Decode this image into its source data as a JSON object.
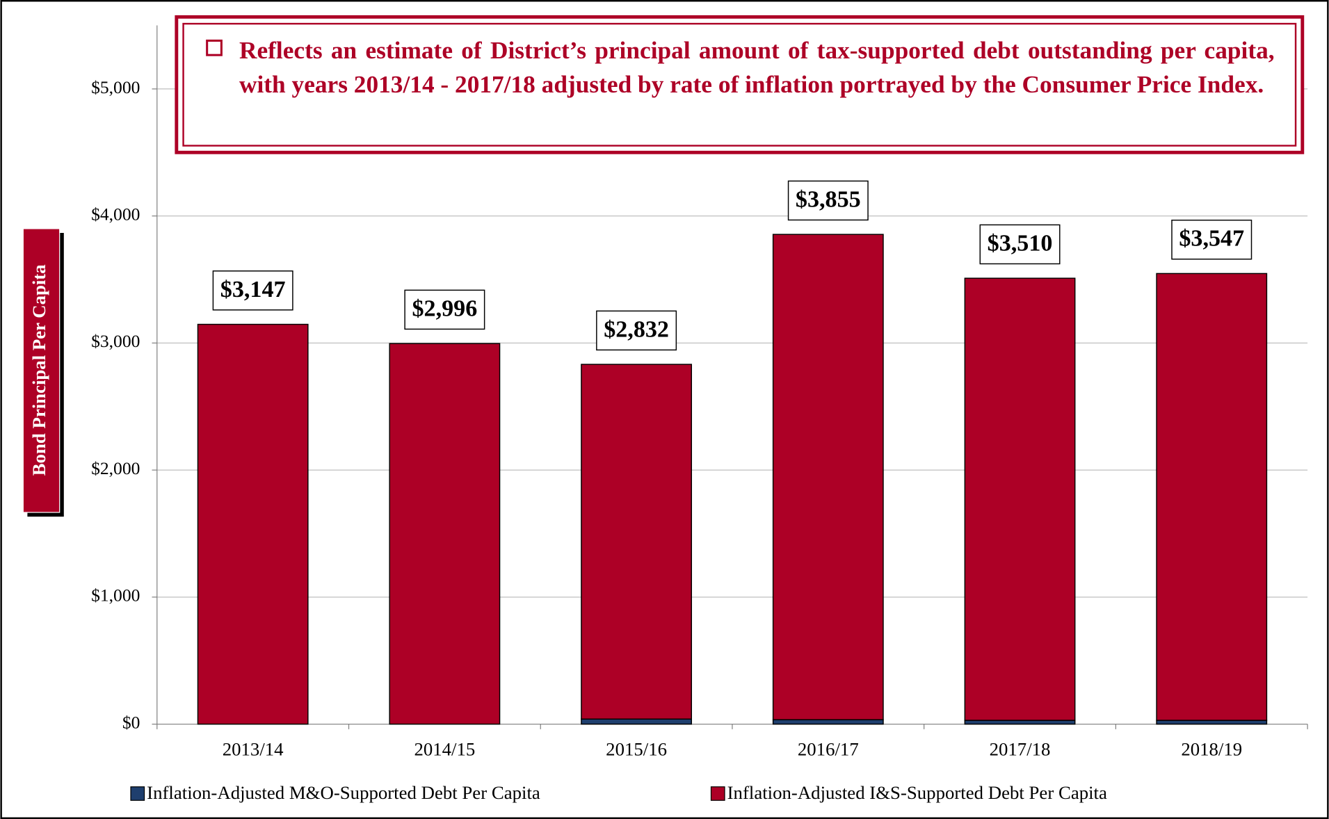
{
  "chart_data": {
    "type": "bar",
    "stacked": true,
    "annotation": "Reflects an estimate of District’s principal amount of tax-supported debt outstanding per capita, with years 2013/14 - 2017/18 adjusted by rate of inflation portrayed by the Consumer Price Index.",
    "y_label": "Bond Principal Per Capita",
    "categories": [
      "2013/14",
      "2014/15",
      "2015/16",
      "2016/17",
      "2017/18",
      "2018/19"
    ],
    "series": [
      {
        "name": "Inflation-Adjusted M&O-Supported Debt Per Capita",
        "color": "#1f3f6e",
        "values": [
          0,
          0,
          40,
          35,
          30,
          30
        ]
      },
      {
        "name": "Inflation-Adjusted I&S-Supported Debt Per Capita",
        "color": "#ad0026",
        "values": [
          3147,
          2996,
          2792,
          3820,
          3480,
          3517
        ]
      }
    ],
    "totals": {
      "values": [
        3147,
        2996,
        2832,
        3855,
        3510,
        3547
      ],
      "value_labels": [
        "$3,147",
        "$2,996",
        "$2,832",
        "$3,855",
        "$3,510",
        "$3,547"
      ]
    },
    "ylim": [
      0,
      5500
    ],
    "yticks": [
      {
        "value": 0,
        "label": "$0"
      },
      {
        "value": 1000,
        "label": "$1,000"
      },
      {
        "value": 2000,
        "label": "$2,000"
      },
      {
        "value": 3000,
        "label": "$3,000"
      },
      {
        "value": 4000,
        "label": "$4,000"
      },
      {
        "value": 5000,
        "label": "$5,000"
      }
    ],
    "grid": true,
    "legend": "bottom"
  }
}
